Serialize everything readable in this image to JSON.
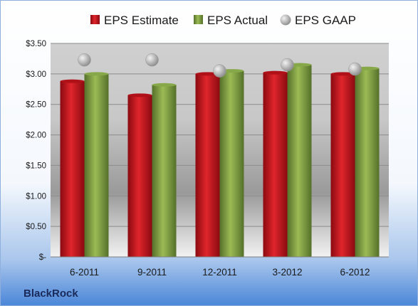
{
  "chart_data": {
    "type": "bar",
    "company": "BlackRock",
    "categories": [
      "6-2011",
      "9-2011",
      "12-2011",
      "3-2012",
      "6-2012"
    ],
    "series": [
      {
        "name": "EPS Estimate",
        "kind": "bar",
        "color": "#c8141c",
        "values": [
          2.88,
          2.65,
          3.0,
          3.02,
          3.0
        ]
      },
      {
        "name": "EPS Actual",
        "kind": "bar",
        "color": "#7f9f3a",
        "values": [
          3.0,
          2.82,
          3.05,
          3.15,
          3.09
        ]
      },
      {
        "name": "EPS GAAP",
        "kind": "marker",
        "color": "#a8a8a8",
        "values": [
          3.23,
          3.23,
          3.05,
          3.15,
          3.08
        ]
      }
    ],
    "ylim": [
      0,
      3.5
    ],
    "yticks": [
      0,
      0.5,
      1.0,
      1.5,
      2.0,
      2.5,
      3.0,
      3.5
    ],
    "ytick_labels": [
      "$-",
      "$0.50",
      "$1.00",
      "$1.50",
      "$2.00",
      "$2.50",
      "$3.00",
      "$3.50"
    ],
    "legend_position": "top",
    "grid": true
  }
}
